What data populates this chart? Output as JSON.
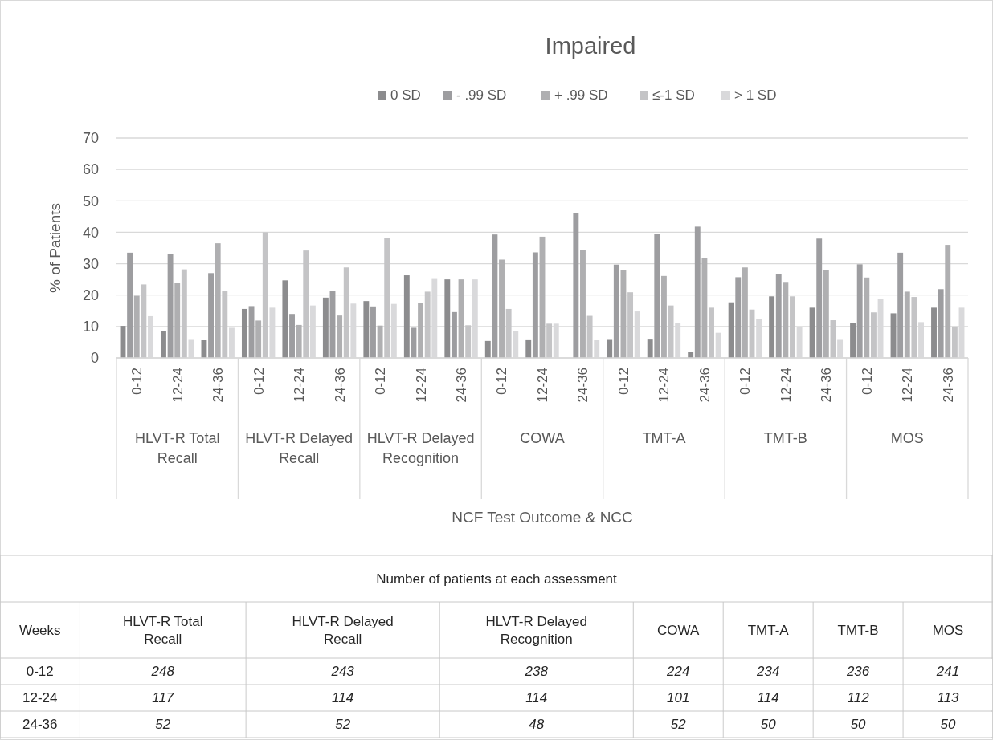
{
  "chart_data": [
    {
      "type": "bar",
      "title": "Impaired",
      "xlabel": "NCF Test Outcome & NCC",
      "ylabel": "% of Patients",
      "categories": [
        "0-12",
        "12-24",
        "24-36",
        "0-12",
        "12-24",
        "24-36",
        "0-12",
        "12-24",
        "24-36",
        "0-12",
        "12-24",
        "24-36",
        "0-12",
        "12-24",
        "24-36",
        "0-12",
        "12-24",
        "24-36",
        "0-12",
        "12-24",
        "24-36"
      ],
      "annotations": [
        "HLVT-R Total Recall",
        "HLVT-R Delayed Recall",
        "HLVT-R Delayed Recognition",
        "COWA",
        "TMT-A",
        "TMT-B",
        "MOS"
      ],
      "series": [
        {
          "name": "0 SD",
          "color": "#8c8c8e",
          "values": [
            10.2,
            8.5,
            5.8,
            15.6,
            24.7,
            19.2,
            18.1,
            26.3,
            25.0,
            5.4,
            5.9,
            0,
            6.0,
            6.1,
            2.0,
            17.7,
            19.6,
            16.0,
            11.2,
            14.2,
            16.0
          ]
        },
        {
          "name": "- .99 SD",
          "color": "#9d9da0",
          "values": [
            33.5,
            33.2,
            27.0,
            16.5,
            14.0,
            21.2,
            16.4,
            9.6,
            14.6,
            39.3,
            33.6,
            46.0,
            29.7,
            39.4,
            41.8,
            25.7,
            26.8,
            38.0,
            29.8,
            33.5,
            21.9
          ]
        },
        {
          "name": "+ .99 SD",
          "color": "#afafb1",
          "values": [
            19.8,
            23.9,
            36.5,
            11.9,
            10.5,
            13.5,
            10.3,
            17.5,
            25.0,
            31.3,
            38.6,
            34.4,
            28.0,
            26.1,
            31.9,
            28.8,
            24.2,
            28.0,
            25.6,
            21.1,
            36.0
          ]
        },
        {
          "name": "≤-1 SD",
          "color": "#c4c4c6",
          "values": [
            23.4,
            28.2,
            21.2,
            40.0,
            34.2,
            28.8,
            38.2,
            21.1,
            10.4,
            15.6,
            10.9,
            13.4,
            20.9,
            16.7,
            16.0,
            15.4,
            19.6,
            12.0,
            14.5,
            19.4,
            10.0
          ]
        },
        {
          "name": "> 1 SD",
          "color": "#d9d9db",
          "values": [
            13.3,
            6.0,
            9.6,
            16.0,
            16.7,
            17.3,
            17.2,
            25.4,
            25.0,
            8.5,
            10.9,
            5.8,
            14.8,
            11.2,
            8.0,
            12.3,
            9.8,
            6.0,
            18.7,
            11.4,
            16.0
          ]
        }
      ],
      "ylim": [
        0,
        70
      ],
      "yticks": [
        0,
        10,
        20,
        30,
        40,
        50,
        60,
        70
      ],
      "grid": "y",
      "legend": "top"
    },
    {
      "type": "heatmap",
      "title": "Number of patients at each assessment",
      "ylabel": "Weeks",
      "categories": [
        "HLVT-R Total Recall",
        "HLVT-R Delayed Recall",
        "HLVT-R Delayed Recognition",
        "COWA",
        "TMT-A",
        "TMT-B",
        "MOS"
      ],
      "y_categories": [
        "0-12",
        "12-24",
        "24-36"
      ],
      "data_labels": true,
      "cells": [
        [
          248,
          243,
          238,
          224,
          234,
          236,
          241
        ],
        [
          117,
          114,
          114,
          101,
          114,
          112,
          113
        ],
        [
          52,
          52,
          48,
          52,
          50,
          50,
          50
        ]
      ]
    }
  ]
}
